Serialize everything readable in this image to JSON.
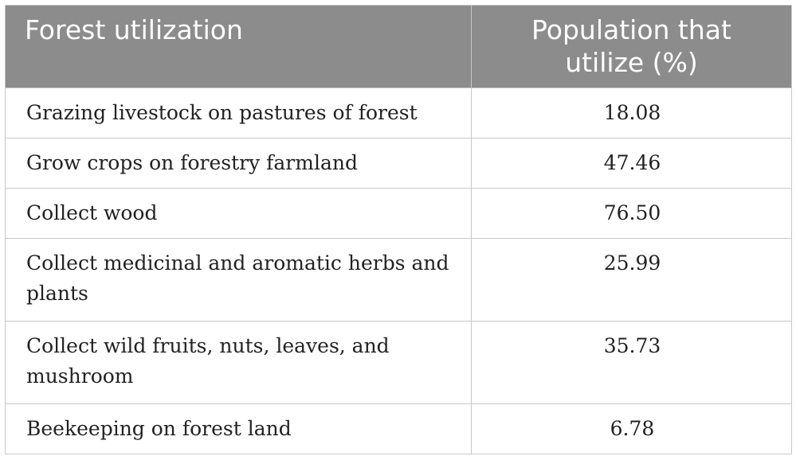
{
  "table": {
    "headers": [
      "Forest utilization",
      "Population that utilize (%)"
    ],
    "rows": [
      {
        "label": "Grazing livestock on pastures of forest",
        "value": "18.08"
      },
      {
        "label": "Grow crops on forestry farmland",
        "value": "47.46"
      },
      {
        "label": "Collect wood",
        "value": "76.50"
      },
      {
        "label": "Collect medicinal and aromatic herbs and plants",
        "value": "25.99"
      },
      {
        "label": "Collect wild fruits, nuts, leaves, and mushroom",
        "value": "35.73"
      },
      {
        "label": "Beekeeping on forest land",
        "value": "6.78"
      }
    ]
  }
}
